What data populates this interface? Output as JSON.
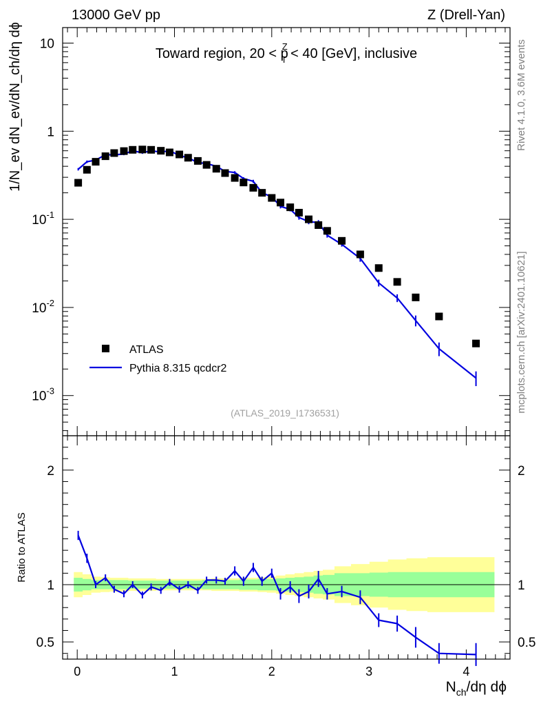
{
  "header": {
    "left": "13000 GeV pp",
    "right": "Z (Drell-Yan)"
  },
  "side_labels": {
    "rivet": "Rivet 4.1.0,  3.6M events",
    "mcplots": "mcplots.cern.ch [arXiv:2401.10621]"
  },
  "chart_data": {
    "type": "scatter",
    "title": "Toward region, 20 < p_T^Z < 40 [GeV], inclusive",
    "title_parts": {
      "prefix": "Toward region, 20 < p",
      "sup": "Z",
      "sub": "T",
      "suffix": " < 40 [GeV], inclusive"
    },
    "analysis_id": "(ATLAS_2019_I1736531)",
    "xlabel": "N_ch/dη dϕ",
    "xlabel_parts": {
      "main": "N",
      "sub": "ch",
      "rest": "/dη dϕ"
    },
    "ylabel": "1/N_ev dN_ev/dN_ch/dη dϕ",
    "xlim": [
      -0.15,
      4.45
    ],
    "ylim": [
      0.00035,
      15
    ],
    "yscale": "log",
    "x_ticks": [
      "0",
      "1",
      "2",
      "3",
      "4"
    ],
    "y_ticks": [
      {
        "base": "10",
        "exp": "-3"
      },
      {
        "base": "10",
        "exp": "-2"
      },
      {
        "base": "10",
        "exp": "-1"
      },
      {
        "base": "1",
        "exp": ""
      },
      {
        "base": "10",
        "exp": ""
      }
    ],
    "legend": {
      "position": "bottom-left",
      "data_label": "ATLAS",
      "mc_label": "Pythia 8.315 qcdcr2"
    },
    "x": [
      0.01,
      0.1,
      0.19,
      0.29,
      0.38,
      0.48,
      0.57,
      0.67,
      0.76,
      0.86,
      0.95,
      1.05,
      1.14,
      1.24,
      1.33,
      1.43,
      1.52,
      1.62,
      1.71,
      1.81,
      1.9,
      2.0,
      2.09,
      2.19,
      2.28,
      2.38,
      2.48,
      2.57,
      2.72,
      2.91,
      3.1,
      3.29,
      3.48,
      3.72,
      4.1
    ],
    "series": [
      {
        "name": "ATLAS",
        "values": [
          0.26,
          0.365,
          0.45,
          0.52,
          0.565,
          0.595,
          0.615,
          0.62,
          0.615,
          0.6,
          0.575,
          0.545,
          0.5,
          0.46,
          0.415,
          0.375,
          0.335,
          0.295,
          0.262,
          0.228,
          0.2,
          0.175,
          0.155,
          0.137,
          0.119,
          0.1,
          0.086,
          0.074,
          0.057,
          0.04,
          0.028,
          0.0195,
          0.013,
          0.0079,
          0.0039
        ]
      },
      {
        "name": "Pythia 8.315 qcdcr2",
        "values": [
          0.37,
          0.45,
          0.47,
          0.54,
          0.54,
          0.55,
          0.6,
          0.57,
          0.6,
          0.58,
          0.6,
          0.53,
          0.5,
          0.44,
          0.43,
          0.4,
          0.35,
          0.34,
          0.29,
          0.27,
          0.2,
          0.18,
          0.14,
          0.13,
          0.105,
          0.094,
          0.092,
          0.066,
          0.052,
          0.036,
          0.019,
          0.0128,
          0.0071,
          0.0034,
          0.00158
        ],
        "errors": [
          0.012,
          0.015,
          0.015,
          0.016,
          0.016,
          0.016,
          0.017,
          0.017,
          0.017,
          0.017,
          0.017,
          0.016,
          0.015,
          0.014,
          0.014,
          0.013,
          0.012,
          0.012,
          0.011,
          0.011,
          0.009,
          0.008,
          0.007,
          0.007,
          0.006,
          0.006,
          0.006,
          0.004,
          0.003,
          0.003,
          0.0017,
          0.0013,
          0.001,
          0.0006,
          0.0003
        ]
      }
    ],
    "ratio": {
      "ylabel": "Ratio to ATLAS",
      "ylim": [
        0.35,
        2.3
      ],
      "y_ticks": [
        "0.5",
        "1",
        "2"
      ],
      "values": [
        1.43,
        1.23,
        1.0,
        1.06,
        0.96,
        0.92,
        1.0,
        0.91,
        0.98,
        0.95,
        1.02,
        0.96,
        1.0,
        0.95,
        1.04,
        1.04,
        1.03,
        1.12,
        1.03,
        1.15,
        1.03,
        1.1,
        0.92,
        0.98,
        0.9,
        0.94,
        1.05,
        0.92,
        0.94,
        0.89,
        0.69,
        0.66,
        0.54,
        0.4,
        0.39
      ],
      "errors": [
        0.04,
        0.04,
        0.03,
        0.03,
        0.03,
        0.03,
        0.03,
        0.03,
        0.03,
        0.03,
        0.03,
        0.03,
        0.03,
        0.03,
        0.03,
        0.03,
        0.03,
        0.04,
        0.04,
        0.04,
        0.04,
        0.04,
        0.05,
        0.05,
        0.06,
        0.06,
        0.07,
        0.05,
        0.05,
        0.06,
        0.06,
        0.07,
        0.09,
        0.09,
        0.1
      ],
      "band_inner": [
        0.06,
        0.05,
        0.04,
        0.04,
        0.04,
        0.04,
        0.035,
        0.035,
        0.035,
        0.035,
        0.035,
        0.035,
        0.035,
        0.035,
        0.04,
        0.04,
        0.04,
        0.04,
        0.045,
        0.045,
        0.05,
        0.05,
        0.055,
        0.06,
        0.065,
        0.07,
        0.08,
        0.085,
        0.1,
        0.1,
        0.105,
        0.11,
        0.11,
        0.11,
        0.11
      ],
      "band_outer": [
        0.11,
        0.09,
        0.07,
        0.065,
        0.06,
        0.06,
        0.055,
        0.055,
        0.055,
        0.05,
        0.05,
        0.05,
        0.05,
        0.05,
        0.05,
        0.055,
        0.055,
        0.055,
        0.06,
        0.06,
        0.065,
        0.07,
        0.08,
        0.09,
        0.1,
        0.11,
        0.12,
        0.13,
        0.16,
        0.18,
        0.2,
        0.22,
        0.23,
        0.24,
        0.24
      ],
      "colors": {
        "inner": "#99ff99",
        "outer": "#ffff99"
      }
    },
    "colors": {
      "data": "#000000",
      "mc": "#0000e0",
      "axis": "#000000",
      "side_text": "#808080",
      "analysis_text": "#a0a0a0"
    }
  }
}
